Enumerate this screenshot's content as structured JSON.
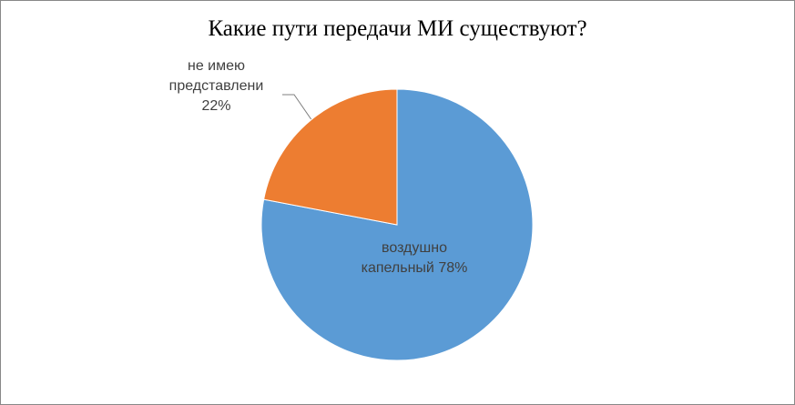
{
  "chart_data": {
    "type": "pie",
    "title": "Какие пути передачи МИ существуют?",
    "categories": [
      "воздушно капельный",
      "не имею представлени"
    ],
    "values": [
      78,
      22
    ],
    "value_labels": [
      "78%",
      "22%"
    ],
    "colors": [
      "#5b9bd5",
      "#ed7d31"
    ]
  }
}
